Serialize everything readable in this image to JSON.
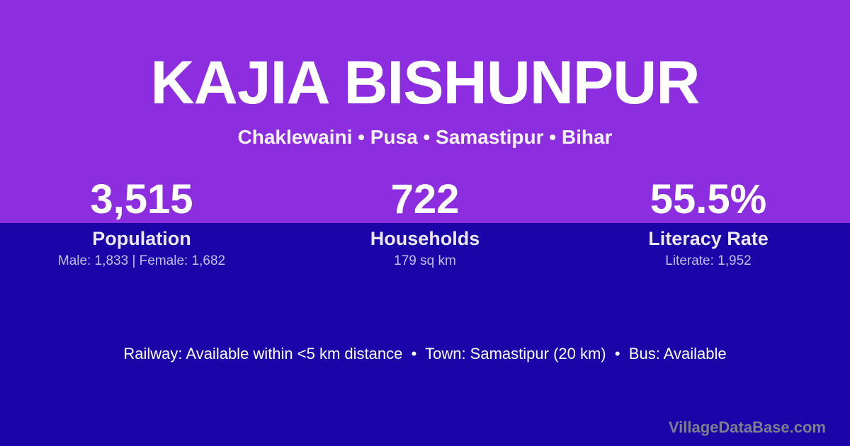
{
  "theme": {
    "purple": "#8C2DE0",
    "blue": "#1B05A8",
    "label": "#ECE7FA",
    "detail": "#C6BEEA",
    "watermark": "#7E7E92"
  },
  "header": {
    "title": "KAJIA BISHUNPUR",
    "subtitle": "Chaklewaini • Pusa • Samastipur • Bihar"
  },
  "stats": [
    {
      "value": "3,515",
      "label": "Population",
      "detail": "Male: 1,833 | Female: 1,682"
    },
    {
      "value": "722",
      "label": "Households",
      "detail": "179 sq km"
    },
    {
      "value": "55.5%",
      "label": "Literacy Rate",
      "detail": "Literate: 1,952"
    }
  ],
  "amenities": {
    "text": "Railway: Available within <5 km distance  •  Town: Samastipur (20 km)  •  Bus: Available"
  },
  "watermark": "VillageDataBase.com"
}
